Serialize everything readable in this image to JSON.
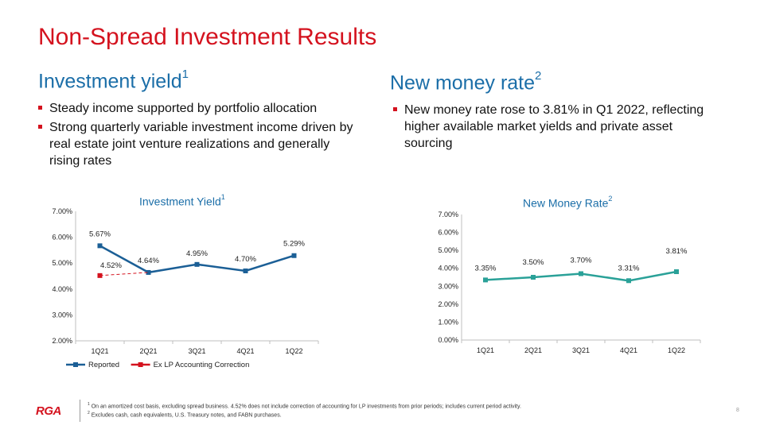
{
  "slide": {
    "title": "Non-Spread Investment Results",
    "page_number": "8",
    "logo_text": "RGA"
  },
  "left": {
    "heading": "Investment yield",
    "heading_sup": "1",
    "bullets": [
      "Steady income supported by portfolio allocation",
      "Strong quarterly variable investment income driven by real estate joint venture realizations and generally rising rates"
    ]
  },
  "right": {
    "heading": "New money rate",
    "heading_sup": "2",
    "bullets": [
      "New money rate rose to 3.81% in Q1 2022, reflecting higher available market yields and private asset sourcing"
    ]
  },
  "footnotes": [
    {
      "sup": "1",
      "text": "On an amortized cost basis, excluding spread business. 4.52% does not include correction of accounting  for LP investments from prior periods; includes current period activity."
    },
    {
      "sup": "2",
      "text": "Excludes cash, cash equivalents,  U.S. Treasury notes, and FABN purchases."
    }
  ],
  "colors": {
    "accent_red": "#d4121e",
    "heading_blue": "#1b6ea8",
    "series_reported": "#1b5f96",
    "series_correction": "#d4121e",
    "series_new_money": "#2aa198"
  },
  "chart_data": [
    {
      "type": "line",
      "title": "Investment  Yield",
      "title_sup": "1",
      "categories": [
        "1Q21",
        "2Q21",
        "3Q21",
        "4Q21",
        "1Q22"
      ],
      "ylim": [
        2.0,
        7.0
      ],
      "yticks": [
        "2.00%",
        "3.00%",
        "4.00%",
        "5.00%",
        "6.00%",
        "7.00%"
      ],
      "grid": false,
      "legend": "bottom",
      "series": [
        {
          "name": "Reported",
          "values": [
            5.67,
            4.64,
            4.95,
            4.7,
            5.29
          ],
          "labels": [
            "5.67%",
            "4.64%",
            "4.95%",
            "4.70%",
            "5.29%"
          ],
          "style": "solid",
          "color": "#1b5f96"
        },
        {
          "name": "Ex LP Accounting Correction",
          "values": [
            4.52,
            4.64,
            null,
            null,
            null
          ],
          "labels": [
            "4.52%",
            null,
            null,
            null,
            null
          ],
          "style": "dashed",
          "color": "#d4121e"
        }
      ]
    },
    {
      "type": "line",
      "title": "New Money Rate",
      "title_sup": "2",
      "categories": [
        "1Q21",
        "2Q21",
        "3Q21",
        "4Q21",
        "1Q22"
      ],
      "ylim": [
        0.0,
        7.0
      ],
      "yticks": [
        "0.00%",
        "1.00%",
        "2.00%",
        "3.00%",
        "4.00%",
        "5.00%",
        "6.00%",
        "7.00%"
      ],
      "grid": false,
      "legend": "none",
      "series": [
        {
          "values": [
            3.35,
            3.5,
            3.7,
            3.31,
            3.81
          ],
          "labels": [
            "3.35%",
            "3.50%",
            "3.70%",
            "3.31%",
            "3.81%"
          ],
          "style": "solid",
          "color": "#2aa198"
        }
      ]
    }
  ]
}
